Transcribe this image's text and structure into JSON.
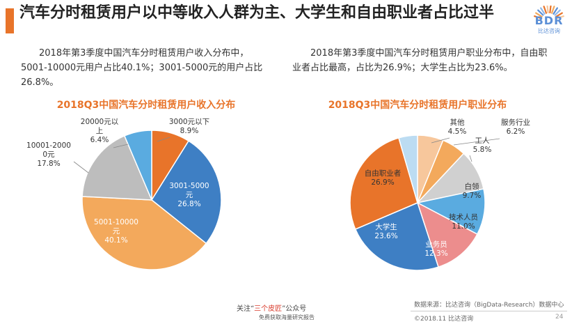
{
  "header": {
    "title": "汽车分时租赁用户以中等收入人群为主、大学生和自由职业者占比过半",
    "logo": {
      "text": "BDR",
      "sub": "比达咨询"
    }
  },
  "descriptions": {
    "left": "2018年第3季度中国汽车分时租赁用户收入分布中，5001-10000元用户占比40.1%；3001-5000元的用户占比26.8%。",
    "right": "2018年第3季度中国汽车分时租赁用户职业分布中，自由职业者占比最高，占比为26.9%；大学生占比为23.6%。"
  },
  "colors": {
    "accent": "#e8742a",
    "orange_dark": "#e8742a",
    "blue": "#3e7fc4",
    "orange_light": "#f3a95c",
    "gray": "#bdbdbd",
    "light_blue": "#5aabe0",
    "pink": "#ec8d8d",
    "light_gray": "#d0d0d0",
    "pale_blue": "#bcdcf2",
    "peach": "#f7c79c"
  },
  "chart_data": [
    {
      "type": "pie",
      "title": "2018Q3中国汽车分时租赁用户收入分布",
      "slices": [
        {
          "label": "3000元以下",
          "label_lines": [
            "3000元以下",
            "8.9%"
          ],
          "pct_text": "8.9%",
          "value": 8.9,
          "color": "#e8742a"
        },
        {
          "label": "3001-5000元",
          "label_lines": [
            "3001-5000",
            "元",
            "26.8%"
          ],
          "pct_text": "26.8%",
          "value": 26.8,
          "color": "#3e7fc4"
        },
        {
          "label": "5001-10000元",
          "label_lines": [
            "5001-10000",
            "元",
            "40.1%"
          ],
          "pct_text": "40.1%",
          "value": 40.1,
          "color": "#f3a95c"
        },
        {
          "label": "10001-20000元",
          "label_lines": [
            "10001-2000",
            "0元",
            "17.8%"
          ],
          "pct_text": "17.8%",
          "value": 17.8,
          "color": "#bdbdbd"
        },
        {
          "label": "20000元以上",
          "label_lines": [
            "20000元以",
            "上",
            "6.4%"
          ],
          "pct_text": "6.4%",
          "value": 6.4,
          "color": "#5aabe0"
        }
      ]
    },
    {
      "type": "pie",
      "title": "2018Q3中国汽车分时租赁用户职业分布",
      "slices": [
        {
          "label": "服务行业",
          "label_lines": [
            "服务行业",
            "6.2%"
          ],
          "pct_text": "6.2%",
          "value": 6.2,
          "color": "#f7c79c"
        },
        {
          "label": "工人",
          "label_lines": [
            "工人",
            "5.8%"
          ],
          "pct_text": "5.8%",
          "value": 5.8,
          "color": "#f3a95c"
        },
        {
          "label": "白领",
          "label_lines": [
            "白领",
            "9.7%"
          ],
          "pct_text": "9.7%",
          "value": 9.7,
          "color": "#d0d0d0"
        },
        {
          "label": "技术人员",
          "label_lines": [
            "技术人员",
            "11.0%"
          ],
          "pct_text": "11.0%",
          "value": 11.0,
          "color": "#5aabe0"
        },
        {
          "label": "业务员",
          "label_lines": [
            "业务员",
            "12.3%"
          ],
          "pct_text": "12.3%",
          "value": 12.3,
          "color": "#ec8d8d"
        },
        {
          "label": "大学生",
          "label_lines": [
            "大学生",
            "23.6%"
          ],
          "pct_text": "23.6%",
          "value": 23.6,
          "color": "#3e7fc4"
        },
        {
          "label": "自由职业者",
          "label_lines": [
            "自由职业者",
            "26.9%"
          ],
          "pct_text": "26.9%",
          "value": 26.9,
          "color": "#e8742a"
        },
        {
          "label": "其他",
          "label_lines": [
            "其他",
            "4.5%"
          ],
          "pct_text": "4.5%",
          "value": 4.5,
          "color": "#bcdcf2"
        }
      ]
    }
  ],
  "footer": {
    "source": "数据来源：比达咨询（BigData-Research）数据中心",
    "copyright": "©2018.11 比达咨询",
    "page": "24",
    "watermark_line1_pre": "关注“",
    "watermark_line1_red": "三个皮匠",
    "watermark_line1_post": "”公众号",
    "watermark_line2": "免费获取海量研究报告"
  }
}
